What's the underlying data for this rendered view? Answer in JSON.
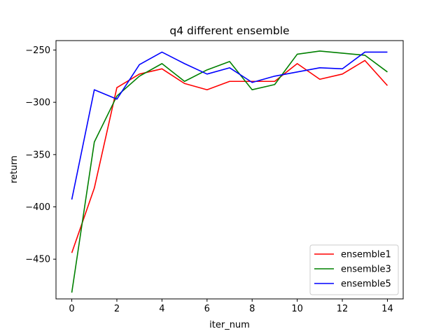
{
  "chart_data": {
    "type": "line",
    "title": "q4 different ensemble",
    "xlabel": "iter_num",
    "ylabel": "return",
    "x": [
      0,
      1,
      2,
      3,
      4,
      5,
      6,
      7,
      8,
      9,
      10,
      11,
      12,
      13,
      14
    ],
    "xlim": [
      -0.7,
      14.7
    ],
    "ylim": [
      -488,
      -241
    ],
    "xticks": [
      0,
      2,
      4,
      6,
      8,
      10,
      12,
      14
    ],
    "yticks": [
      -450,
      -400,
      -350,
      -300,
      -250
    ],
    "grid": false,
    "legend_position": "lower right",
    "series": [
      {
        "name": "ensemble1",
        "color": "#ff0000",
        "values": [
          -444,
          -382,
          -286,
          -273,
          -268,
          -282,
          -288,
          -280,
          -280,
          -280,
          -263,
          -278,
          -273,
          -260,
          -284
        ]
      },
      {
        "name": "ensemble3",
        "color": "#008000",
        "values": [
          -482,
          -338,
          -294,
          -275,
          -263,
          -280,
          -269,
          -261,
          -288,
          -283,
          -254,
          -251,
          -253,
          -255,
          -271
        ]
      },
      {
        "name": "ensemble5",
        "color": "#0000ff",
        "values": [
          -393,
          -288,
          -297,
          -264,
          -252,
          -263,
          -273,
          -267,
          -281,
          -275,
          -271,
          -267,
          -268,
          -252,
          -252
        ]
      }
    ]
  }
}
